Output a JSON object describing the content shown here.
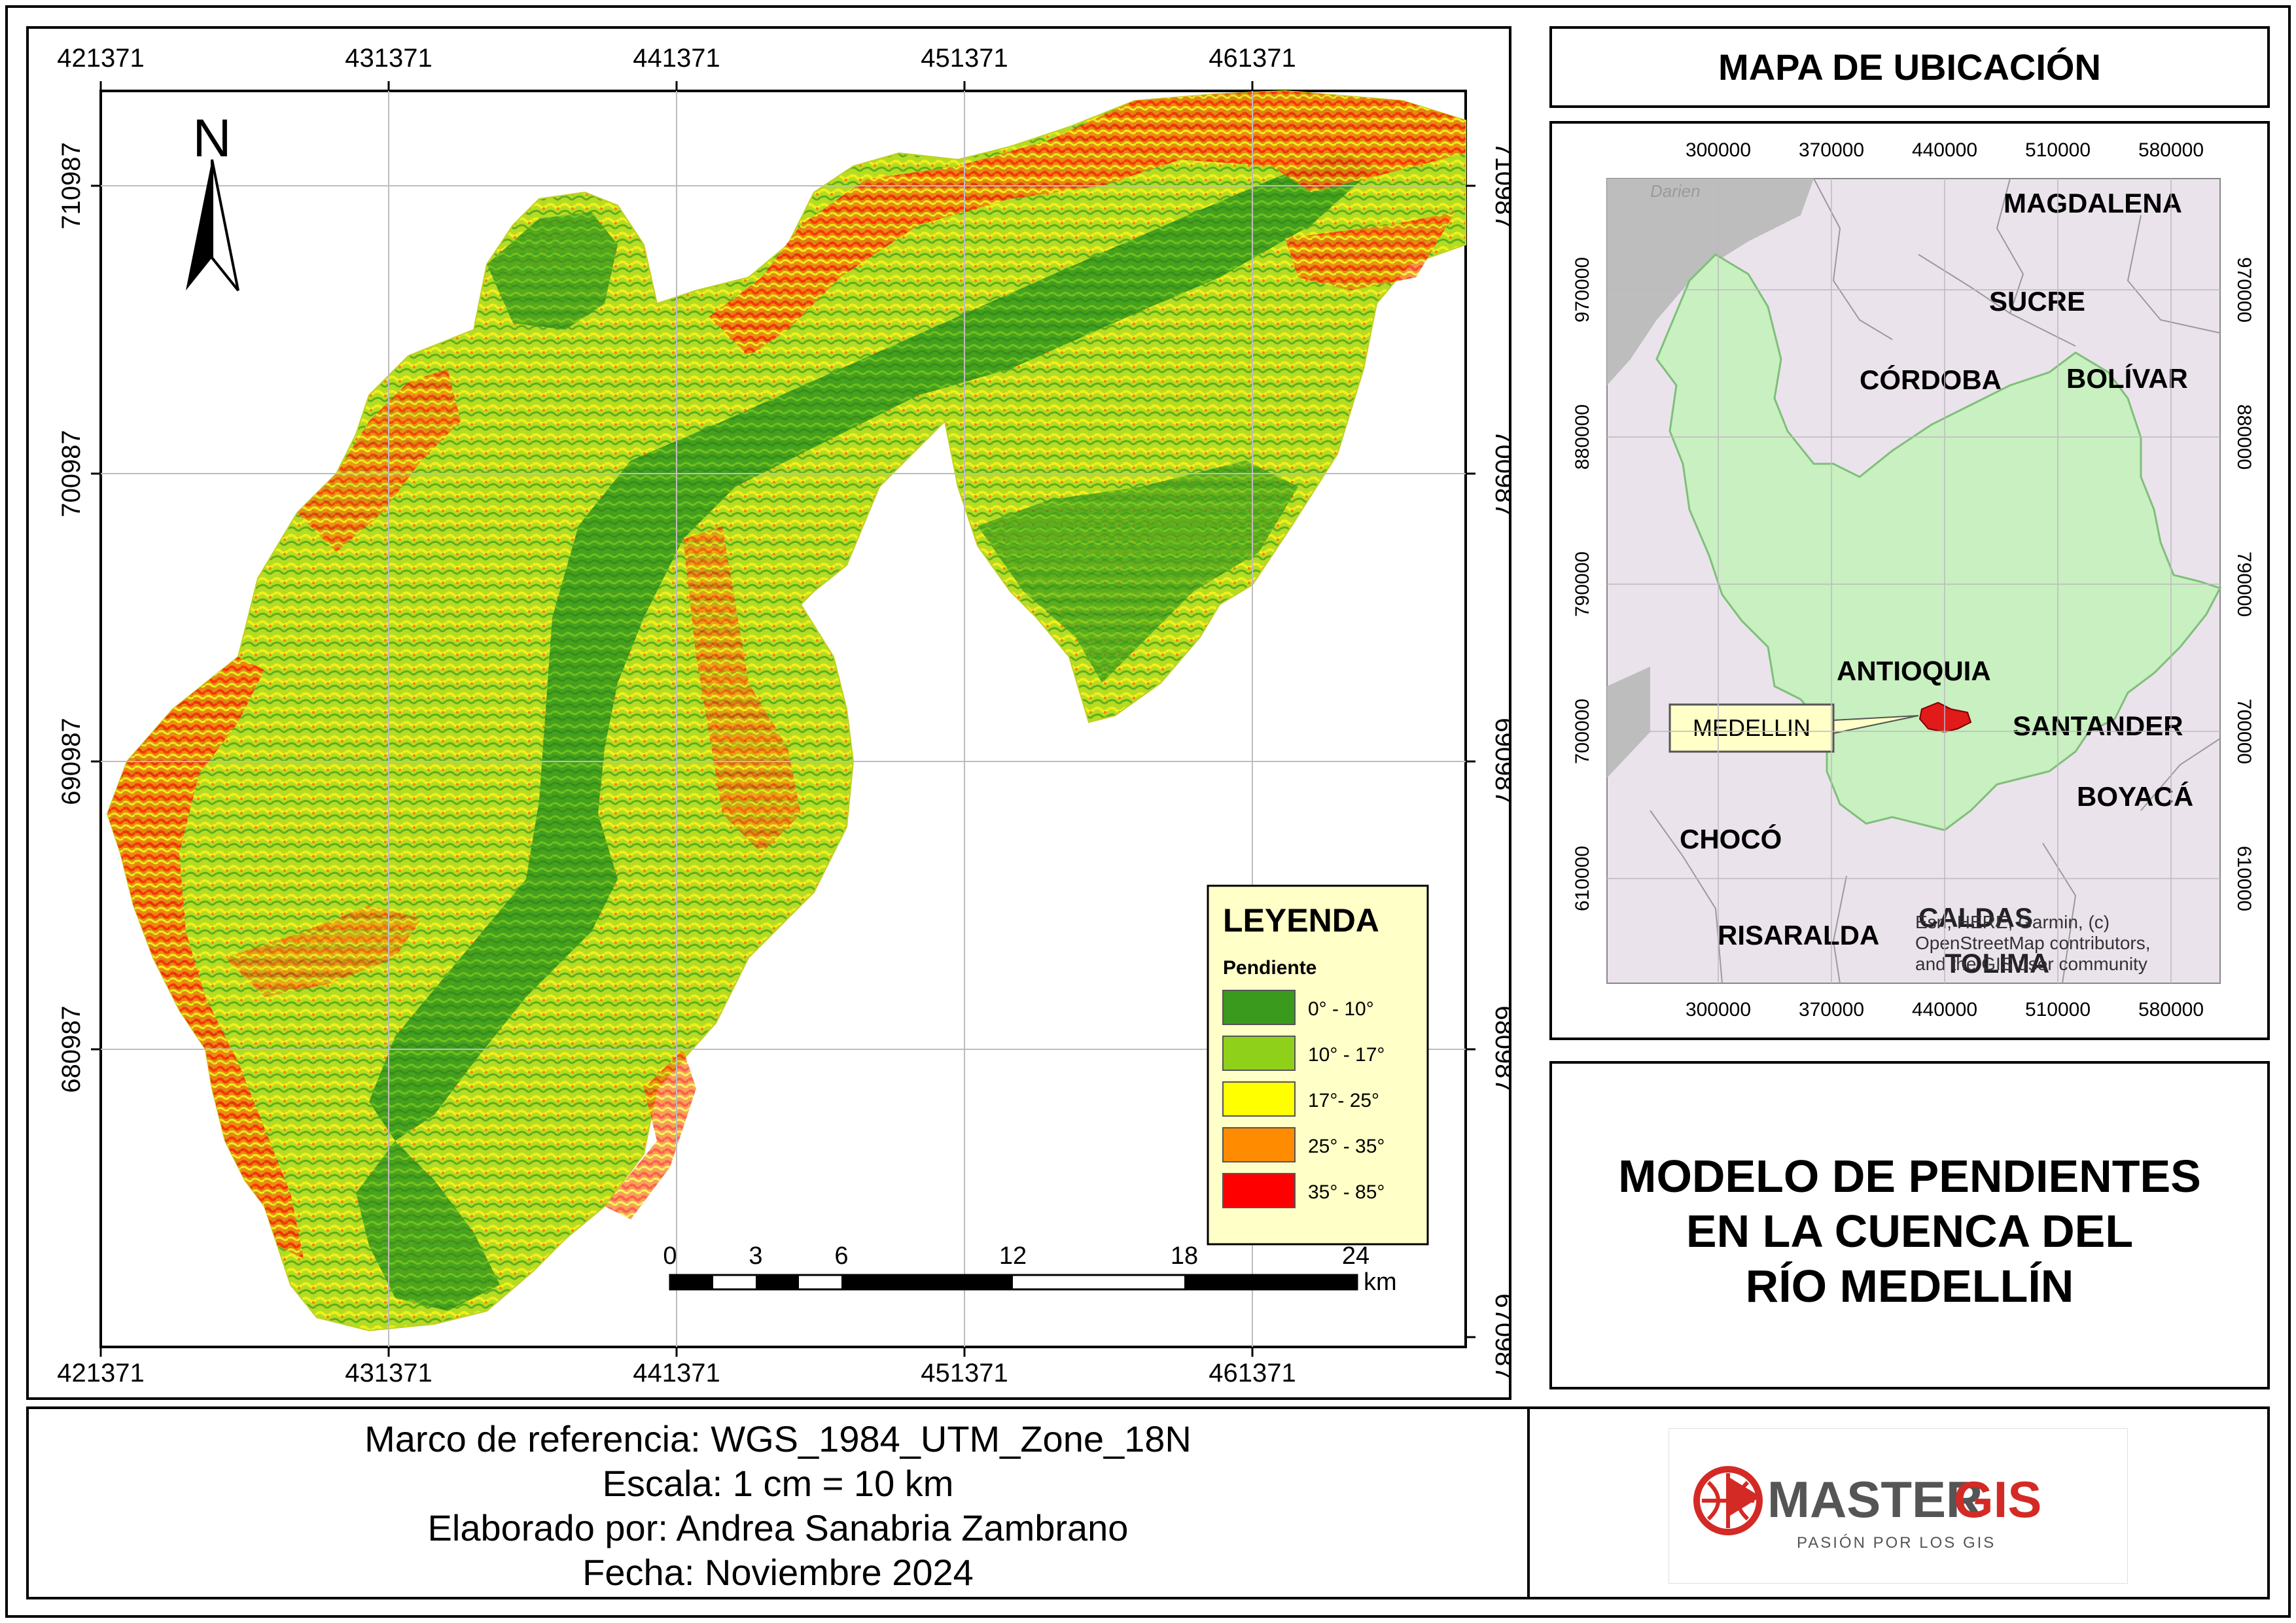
{
  "main_map": {
    "top_x_ticks": [
      "421371",
      "431371",
      "441371",
      "451371",
      "461371"
    ],
    "bottom_x_ticks": [
      "421371",
      "431371",
      "441371",
      "451371",
      "461371"
    ],
    "left_y_ticks": [
      "710987",
      "700987",
      "690987",
      "680987"
    ],
    "right_y_ticks": [
      "710987",
      "700987",
      "690987",
      "680987",
      "670987"
    ],
    "north_label": "N",
    "scale_bar": {
      "labels": [
        "0",
        "3",
        "6",
        "12",
        "18",
        "24"
      ],
      "unit": "km"
    },
    "legend": {
      "title": "LEYENDA",
      "subtitle": "Pendiente",
      "items": [
        {
          "label": "0° - 10°",
          "color": "#3a9a1e"
        },
        {
          "label": "10° - 17°",
          "color": "#8fd11a"
        },
        {
          "label": "17°- 25°",
          "color": "#ffff00"
        },
        {
          "label": "25° - 35°",
          "color": "#ff8c00"
        },
        {
          "label": "35° - 85°",
          "color": "#ff0000"
        }
      ]
    }
  },
  "location_panel": {
    "title": "MAPA DE UBICACIÓN",
    "x_ticks_top": [
      "300000",
      "370000",
      "440000",
      "510000",
      "580000"
    ],
    "x_ticks_bottom": [
      "300000",
      "370000",
      "440000",
      "510000",
      "580000"
    ],
    "y_ticks_left": [
      "970000",
      "880000",
      "790000",
      "700000",
      "610000"
    ],
    "y_ticks_right": [
      "970000",
      "880000",
      "790000",
      "700000",
      "610000"
    ],
    "departments": [
      "MAGDALENA",
      "SUCRE",
      "CÓRDOBA",
      "BOLÍVAR",
      "ANTIOQUIA",
      "SANTANDER",
      "BOYACÁ",
      "CHOCÓ",
      "RISARALDA",
      "CALDAS",
      "TOLIMA"
    ],
    "darien_label": "Darien",
    "callout": "MEDELLIN",
    "attribution": [
      "Esri, HERE, Garmin, (c)",
      "OpenStreetMap contributors,",
      "and the GIS user community"
    ]
  },
  "title_panel": {
    "lines": [
      "MODELO DE PENDIENTES",
      "EN LA CUENCA DEL",
      "RÍO MEDELLÍN"
    ]
  },
  "info": {
    "lines": [
      "Marco de referencia: WGS_1984_UTM_Zone_18N",
      "Escala: 1 cm = 10 km",
      "Elaborado por: Andrea Sanabria Zambrano",
      "Fecha: Noviembre 2024"
    ]
  },
  "logo": {
    "word_a": "MASTER",
    "word_b": "GIS",
    "tagline": "PASIÓN POR LOS GIS"
  },
  "colors": {
    "slope_low": "#3a9a1e",
    "slope_mid": "#8fd11a",
    "slope_17_25": "#ffff00",
    "slope_25_35": "#ff8c00",
    "slope_high": "#ff0000",
    "antioquia_fill": "#c8f0c0",
    "neighbors_fill": "#ebe3ec",
    "sea_fill": "#bdbdbd",
    "legend_bg": "#ffffc8",
    "logo_red": "#d42a25",
    "logo_gray": "#555555"
  }
}
